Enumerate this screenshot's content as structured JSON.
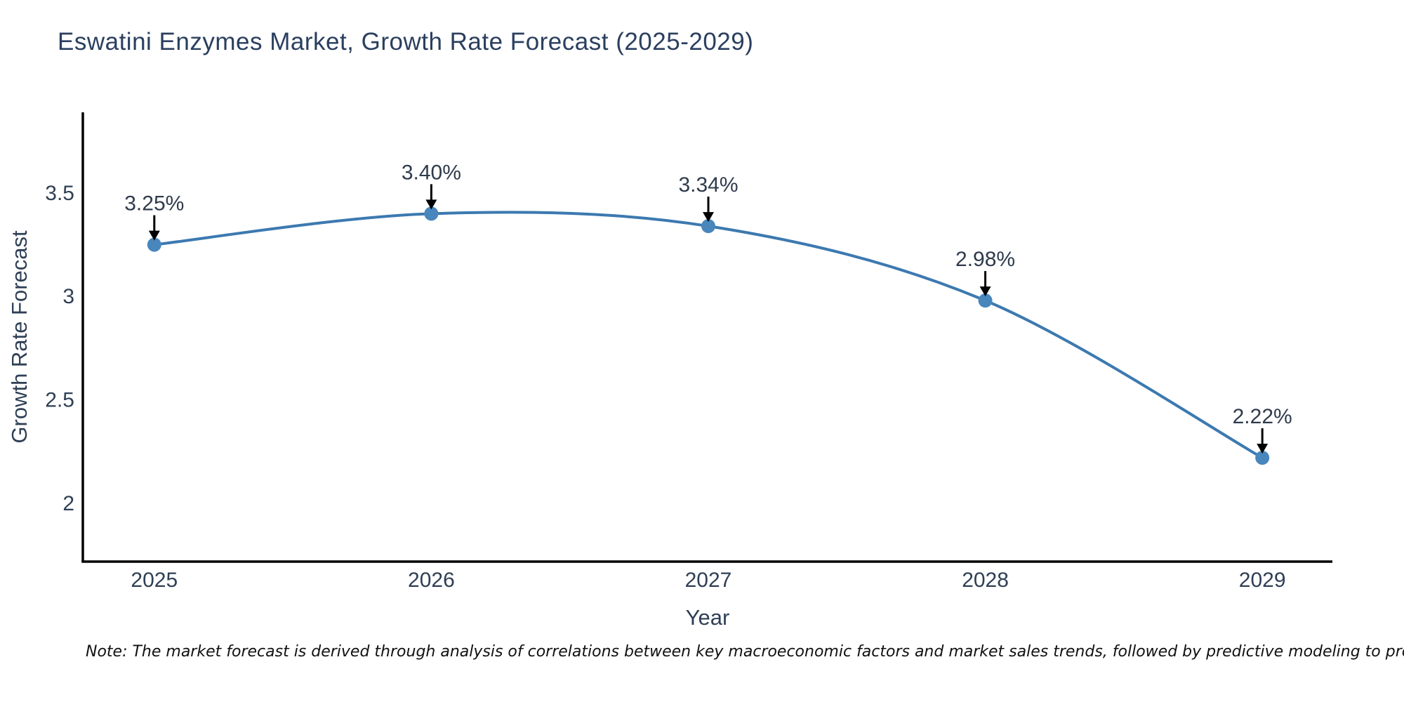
{
  "page": {
    "title": "Eswatini Enzymes Market, Growth Rate Forecast (2025-2029)",
    "note": "Note: The market forecast is derived through analysis of correlations between key macroeconomic factors and market sales trends, followed by predictive modeling to project future sales"
  },
  "chart_data": {
    "type": "line",
    "title": "Eswatini Enzymes Market, Growth Rate Forecast (2025-2029)",
    "xlabel": "Year",
    "ylabel": "Growth Rate Forecast",
    "x": [
      2025,
      2026,
      2027,
      2028,
      2029
    ],
    "y": [
      3.25,
      3.4,
      3.34,
      2.98,
      2.22
    ],
    "point_labels": [
      "3.25%",
      "3.40%",
      "3.34%",
      "2.98%",
      "2.22%"
    ],
    "x_tick_labels": [
      "2025",
      "2026",
      "2027",
      "2028",
      "2029"
    ],
    "y_ticks": [
      {
        "value": 3.5,
        "label": "3.5"
      },
      {
        "value": 3.0,
        "label": "3"
      },
      {
        "value": 2.5,
        "label": "2.5"
      },
      {
        "value": 2.0,
        "label": "2"
      }
    ],
    "xlim": [
      2024.742,
      2029.253
    ],
    "ylim": [
      1.718,
      3.89
    ],
    "line_shape": "spline",
    "grid": false,
    "legend": "none",
    "colors": {
      "line": "#3c79b0",
      "marker": "#4886bc",
      "arrow": "#000000",
      "axis": "#000000",
      "tick_text": "#2f3f55",
      "annotation_text": "#2f3b4c",
      "title_text": "#2a3f5f",
      "note_text": "#111111"
    }
  }
}
